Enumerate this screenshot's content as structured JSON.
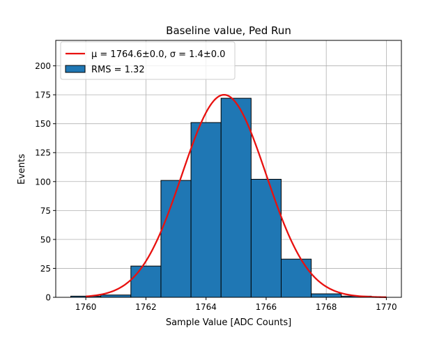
{
  "chart_data": {
    "type": "bar",
    "title": "Baseline value, Ped Run",
    "xlabel": "Sample Value [ADC Counts]",
    "ylabel": "Events",
    "xlim": [
      1759.0,
      1770.5
    ],
    "ylim": [
      0,
      222
    ],
    "xticks": [
      1760,
      1762,
      1764,
      1766,
      1768,
      1770
    ],
    "yticks": [
      0,
      25,
      50,
      75,
      100,
      125,
      150,
      175,
      200
    ],
    "grid": true,
    "legend_position": "top-left",
    "histogram": {
      "name": "RMS = 1.32",
      "bin_edges": [
        1759.5,
        1760.5,
        1761.5,
        1762.5,
        1763.5,
        1764.5,
        1765.5,
        1766.5,
        1767.5,
        1768.5,
        1769.5
      ],
      "counts": [
        1,
        2,
        27,
        101,
        151,
        172,
        102,
        33,
        3,
        1
      ],
      "color": "#1f77b4"
    },
    "fit": {
      "name_prefix": "μ = 1764.6±0.0, ",
      "name_suffix": "σ = 1.4±0.0",
      "mu": 1764.6,
      "sigma": 1.4,
      "amplitude": 175,
      "x_range": [
        1760,
        1770
      ],
      "color": "#e8110f"
    }
  }
}
